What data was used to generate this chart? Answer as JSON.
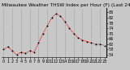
{
  "title": "Milwaukee Weather THSW Index per Hour (F) (Last 24 Hours)",
  "x_values": [
    0,
    1,
    2,
    3,
    4,
    5,
    6,
    7,
    8,
    9,
    10,
    11,
    12,
    13,
    14,
    15,
    16,
    17,
    18,
    19,
    20,
    21,
    22,
    23
  ],
  "y_values": [
    58,
    60,
    57,
    54,
    56,
    55,
    57,
    56,
    63,
    70,
    76,
    82,
    85,
    83,
    79,
    74,
    70,
    67,
    65,
    64,
    63,
    62,
    62,
    61
  ],
  "y_ticks": [
    54,
    58,
    62,
    66,
    70,
    74,
    78,
    82,
    86
  ],
  "y_min": 52,
  "y_max": 89,
  "line_color": "#dd0000",
  "marker_color": "#000000",
  "bg_color": "#c8c8c8",
  "plot_bg": "#c8c8c8",
  "grid_color": "#888888",
  "title_color": "#000000",
  "title_fontsize": 4.2,
  "tick_fontsize": 3.5,
  "vgrid_every": 2,
  "x_labels": [
    "0",
    "1",
    "2",
    "3",
    "4",
    "5",
    "6",
    "7",
    "8",
    "9",
    "10",
    "11",
    "12",
    "13",
    "14",
    "15",
    "16",
    "17",
    "18",
    "19",
    "20",
    "21",
    "22",
    "23"
  ]
}
